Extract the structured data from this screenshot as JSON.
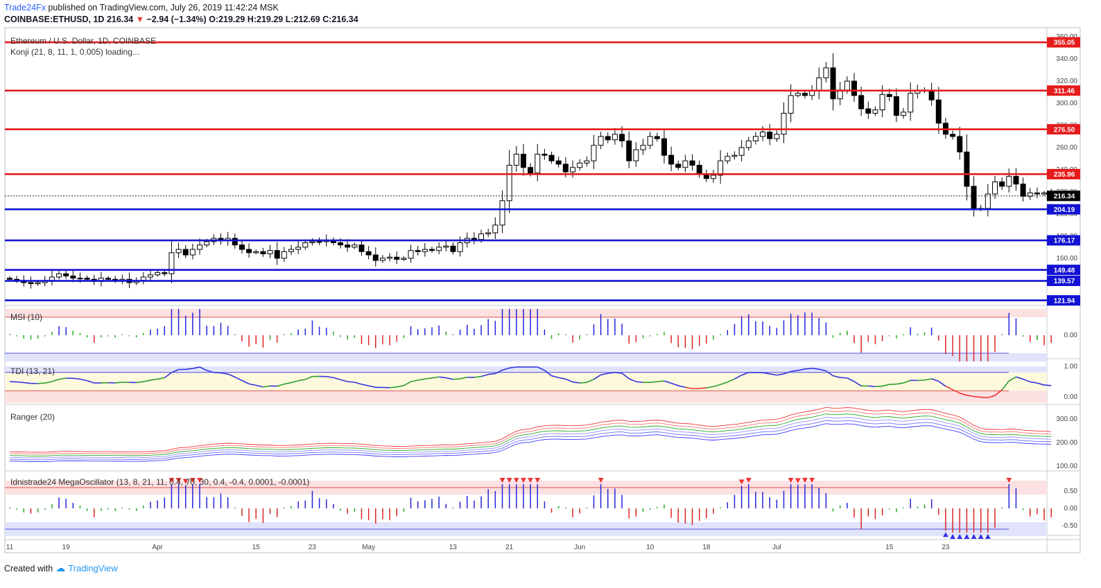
{
  "header": {
    "publisher": "Trade24Fx",
    "published_text": "published on TradingView.com, July 26, 2019 11:42:24 MSK",
    "symbol": "COINBASE:ETHUSD, 1D",
    "price": "216.34",
    "change": "−2.94 (−1.34%)",
    "o_label": "O:",
    "o_value": "219.29",
    "h_label": "H:",
    "h_value": "219.29",
    "l_label": "L:",
    "l_value": "212.69",
    "c_label": "C:",
    "c_value": "216.34"
  },
  "footer": {
    "created_with": "Created with",
    "brand": "TradingView"
  },
  "colors": {
    "support": "#1212d4",
    "resistance": "#e61b1b",
    "up_candle": "#ffffff",
    "down_candle": "#000000",
    "price_tag": "#000000"
  },
  "chart_data": [
    {
      "type": "candlestick",
      "title": "Ethereum / U.S. Dollar, 1D, COINBASE",
      "subtitle": "Konji (21, 8, 11, 1, 0.005) loading...",
      "ylim": [
        118,
        367
      ],
      "yticks": [
        160,
        180,
        200,
        220,
        240,
        260,
        280,
        300,
        320,
        340,
        360
      ],
      "ytick_labels": [
        "160.00",
        "180.00",
        "200.00",
        "220.00",
        "240.00",
        "260.00",
        "280.00",
        "300.00",
        "320.00",
        "340.00",
        "360.00"
      ],
      "x_tick_labels": [
        "11",
        "19",
        "Apr",
        "15",
        "23",
        "May",
        "13",
        "21",
        "Jun",
        "10",
        "18",
        "Jul",
        "15",
        "23"
      ],
      "x_tick_day_index": [
        0,
        8,
        21,
        35,
        43,
        51,
        63,
        71,
        81,
        91,
        99,
        109,
        125,
        133
      ],
      "close": [
        141,
        140,
        138,
        137,
        138,
        140,
        143,
        146,
        144,
        142,
        142,
        141,
        139,
        142,
        141,
        140,
        141,
        138,
        140,
        143,
        145,
        147,
        146,
        165,
        168,
        163,
        168,
        172,
        175,
        178,
        176,
        178,
        172,
        168,
        165,
        166,
        164,
        167,
        160,
        166,
        168,
        170,
        174,
        175,
        175,
        176,
        174,
        172,
        170,
        172,
        166,
        163,
        158,
        160,
        161,
        159,
        160,
        167,
        166,
        168,
        167,
        170,
        171,
        166,
        174,
        178,
        177,
        182,
        183,
        190,
        212,
        244,
        254,
        242,
        237,
        254,
        253,
        248,
        245,
        238,
        242,
        246,
        248,
        262,
        270,
        267,
        272,
        266,
        248,
        258,
        262,
        270,
        268,
        253,
        245,
        242,
        248,
        244,
        236,
        232,
        235,
        248,
        252,
        253,
        260,
        266,
        270,
        274,
        268,
        272,
        291,
        307,
        309,
        307,
        311,
        323,
        332,
        304,
        312,
        320,
        307,
        295,
        291,
        294,
        308,
        306,
        289,
        292,
        309,
        311,
        312,
        303,
        282,
        272,
        270,
        256,
        225,
        205,
        205,
        218,
        229,
        225,
        234,
        227,
        216,
        219,
        218,
        219,
        216
      ]
    },
    {
      "type": "bar",
      "title": "MSI (10)",
      "yticks": [
        0
      ],
      "ytick_labels": [
        "0.00"
      ],
      "upper_band": 0.55,
      "lower_band": -0.55
    },
    {
      "type": "line",
      "title": "TDI (13, 21)",
      "yticks": [
        0,
        1
      ],
      "ytick_labels": [
        "0.00",
        "1.00"
      ],
      "upper_band": 0.8,
      "lower_band": 0.2
    },
    {
      "type": "line",
      "title": "Ranger (20)",
      "yticks": [
        100,
        200,
        300
      ],
      "ytick_labels": [
        "100.00",
        "200.00",
        "300.00"
      ]
    },
    {
      "type": "bar",
      "title": "Idnistrade24 MegaOscillator (13, 8, 21, 11, 0.4, 70, 30, 0.4, -0.4, 0.0001, -0.0001)",
      "yticks": [
        0.5,
        0,
        -0.5
      ],
      "ytick_labels": [
        "0.50",
        "0.00",
        "-0.50"
      ],
      "upper_band": 0.4,
      "lower_band": -0.4
    }
  ],
  "levels": [
    {
      "value": 355.05,
      "label": "355.05",
      "kind": "resistance"
    },
    {
      "value": 311.46,
      "label": "311.46",
      "kind": "resistance"
    },
    {
      "value": 276.5,
      "label": "276.50",
      "kind": "resistance"
    },
    {
      "value": 235.96,
      "label": "235.96",
      "kind": "resistance"
    },
    {
      "value": 204.19,
      "label": "204.19",
      "kind": "support"
    },
    {
      "value": 176.17,
      "label": "176.17",
      "kind": "support"
    },
    {
      "value": 149.48,
      "label": "149.48",
      "kind": "support"
    },
    {
      "value": 139.57,
      "label": "139.57",
      "kind": "support"
    },
    {
      "value": 121.94,
      "label": "121.94",
      "kind": "support"
    }
  ],
  "last_price": {
    "value": 216.34,
    "label": "216.34"
  }
}
